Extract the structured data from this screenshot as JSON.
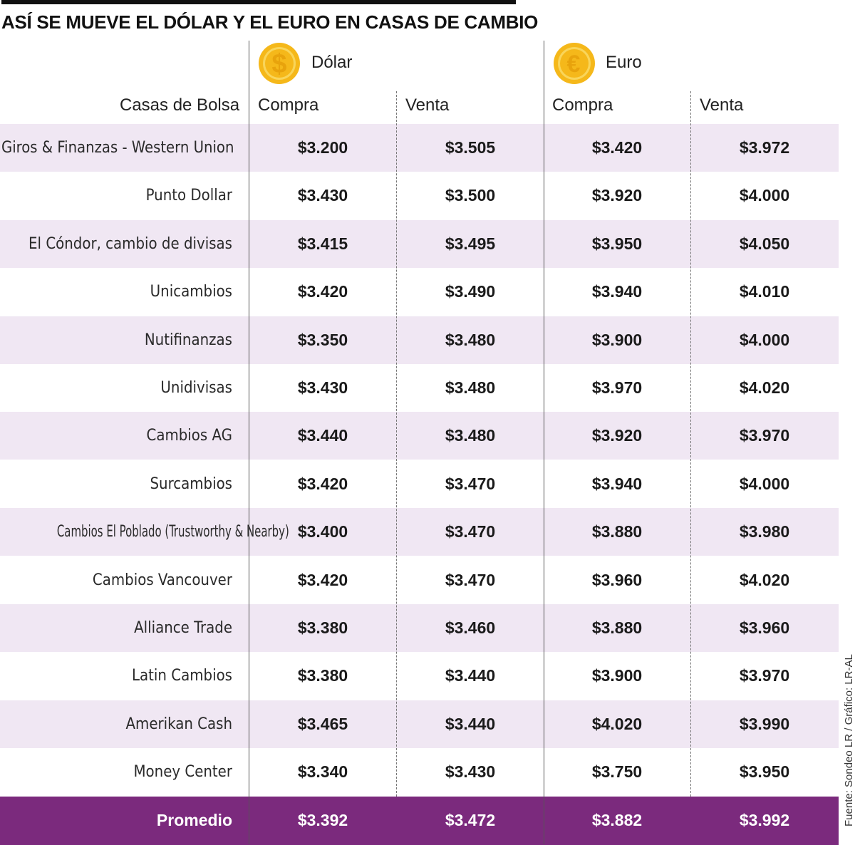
{
  "header": {
    "title": "ASÍ SE MUEVE EL DÓLAR Y EL EURO EN CASAS DE CAMBIO"
  },
  "currencies": [
    {
      "label": "Dólar",
      "icon": "dollar-coin-icon",
      "symbol": "$"
    },
    {
      "label": "Euro",
      "icon": "euro-coin-icon",
      "symbol": "€"
    }
  ],
  "columns": {
    "casas": "Casas de Bolsa",
    "dolar_compra": "Compra",
    "dolar_venta": "Venta",
    "euro_compra": "Compra",
    "euro_venta": "Venta"
  },
  "colors": {
    "row_shade": "#f0e7f3",
    "average_row": "#7b2a7d",
    "coin_fill": "#f5b81a",
    "coin_ring": "#f9d55a"
  },
  "chart_data": {
    "type": "table",
    "title": "ASÍ SE MUEVE EL DÓLAR Y EL EURO EN CASAS DE CAMBIO",
    "columns": [
      "Casas de Bolsa",
      "Dólar Compra",
      "Dólar Venta",
      "Euro Compra",
      "Euro Venta"
    ],
    "rows": [
      {
        "name": "Giros & Finanzas - Western Union",
        "values": [
          "$3.200",
          "$3.505",
          "$3.420",
          "$3.972"
        ]
      },
      {
        "name": "Punto Dollar",
        "values": [
          "$3.430",
          "$3.500",
          "$3.920",
          "$4.000"
        ]
      },
      {
        "name": "El Cóndor, cambio de divisas",
        "values": [
          "$3.415",
          "$3.495",
          "$3.950",
          "$4.050"
        ]
      },
      {
        "name": "Unicambios",
        "values": [
          "$3.420",
          "$3.490",
          "$3.940",
          "$4.010"
        ]
      },
      {
        "name": "Nutifinanzas",
        "values": [
          "$3.350",
          "$3.480",
          "$3.900",
          "$4.000"
        ]
      },
      {
        "name": "Unidivisas",
        "values": [
          "$3.430",
          "$3.480",
          "$3.970",
          "$4.020"
        ]
      },
      {
        "name": "Cambios AG",
        "values": [
          "$3.440",
          "$3.480",
          "$3.920",
          "$3.970"
        ]
      },
      {
        "name": "Surcambios",
        "values": [
          "$3.420",
          "$3.470",
          "$3.940",
          "$4.000"
        ]
      },
      {
        "name": "Cambios El Poblado (Trustworthy & Nearby)",
        "values": [
          "$3.400",
          "$3.470",
          "$3.880",
          "$3.980"
        ]
      },
      {
        "name": "Cambios Vancouver",
        "values": [
          "$3.420",
          "$3.470",
          "$3.960",
          "$4.020"
        ]
      },
      {
        "name": "Alliance Trade",
        "values": [
          "$3.380",
          "$3.460",
          "$3.880",
          "$3.960"
        ]
      },
      {
        "name": "Latin Cambios",
        "values": [
          "$3.380",
          "$3.440",
          "$3.900",
          "$3.970"
        ]
      },
      {
        "name": "Amerikan Cash",
        "values": [
          "$3.465",
          "$3.440",
          "$4.020",
          "$3.990"
        ]
      },
      {
        "name": "Money Center",
        "values": [
          "$3.340",
          "$3.430",
          "$3.750",
          "$3.950"
        ]
      }
    ],
    "average": {
      "name": "Promedio",
      "values": [
        "$3.392",
        "$3.472",
        "$3.882",
        "$3.992"
      ]
    }
  },
  "footer": {
    "source": "Fuente: Sondeo LR / Gráfico: LR-AL"
  }
}
